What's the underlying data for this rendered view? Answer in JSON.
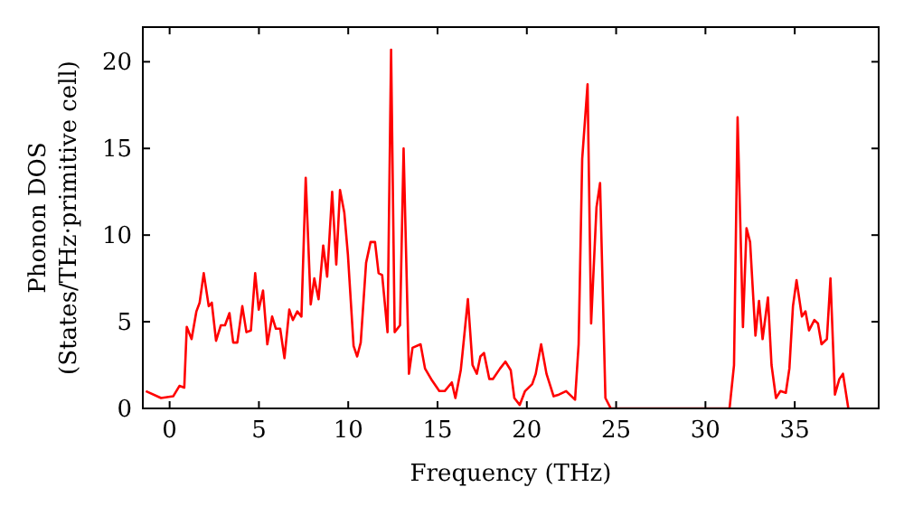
{
  "chart_data": {
    "type": "line",
    "xlabel": "Frequency (THz)",
    "ylabel": "Phonon DOS\n(States/THz·primitive cell)",
    "xlim": [
      -1.5,
      39.7
    ],
    "ylim": [
      0,
      22
    ],
    "xticks": [
      0,
      5,
      10,
      15,
      20,
      25,
      30,
      35
    ],
    "yticks": [
      0,
      5,
      10,
      15,
      20
    ],
    "grid": false,
    "marker": "none",
    "line_style": "solid",
    "series": [
      {
        "color": "#ff0000",
        "x": [
          -1.33,
          -0.48,
          0.2,
          0.55,
          0.82,
          0.96,
          1.23,
          1.5,
          1.68,
          1.91,
          2.19,
          2.36,
          2.6,
          2.87,
          3.1,
          3.35,
          3.56,
          3.79,
          4.07,
          4.3,
          4.55,
          4.79,
          4.99,
          5.23,
          5.47,
          5.74,
          5.95,
          6.19,
          6.43,
          6.7,
          6.9,
          7.15,
          7.38,
          7.62,
          7.9,
          8.1,
          8.34,
          8.6,
          8.82,
          9.1,
          9.33,
          9.54,
          9.78,
          9.98,
          10.3,
          10.5,
          10.7,
          11.0,
          11.25,
          11.5,
          11.7,
          11.9,
          12.2,
          12.4,
          12.6,
          12.9,
          13.1,
          13.4,
          13.6,
          14.05,
          14.3,
          14.7,
          15.1,
          15.4,
          15.8,
          16.0,
          16.3,
          16.4,
          16.7,
          16.96,
          17.2,
          17.4,
          17.6,
          17.9,
          18.1,
          18.5,
          18.8,
          19.1,
          19.3,
          19.6,
          19.9,
          20.3,
          20.5,
          20.8,
          21.1,
          21.5,
          21.8,
          22.2,
          22.7,
          22.9,
          23.1,
          23.4,
          23.6,
          23.9,
          24.1,
          24.4,
          24.7,
          31.35,
          31.6,
          31.8,
          32.1,
          32.3,
          32.5,
          32.8,
          33.0,
          33.2,
          33.5,
          33.7,
          33.95,
          34.2,
          34.5,
          34.7,
          34.9,
          35.1,
          35.4,
          35.6,
          35.8,
          36.1,
          36.3,
          36.5,
          36.8,
          37.0,
          37.25,
          37.5,
          37.7,
          38.0
        ],
        "values": [
          1.0,
          0.6,
          0.7,
          1.3,
          1.2,
          4.7,
          4.0,
          5.6,
          6.1,
          7.8,
          5.9,
          6.1,
          3.9,
          4.8,
          4.8,
          5.5,
          3.8,
          3.8,
          5.9,
          4.4,
          4.5,
          7.8,
          5.7,
          6.8,
          3.7,
          5.3,
          4.6,
          4.6,
          2.9,
          5.7,
          5.1,
          5.6,
          5.3,
          13.3,
          6.0,
          7.5,
          6.3,
          9.4,
          7.6,
          12.5,
          8.3,
          12.6,
          11.3,
          8.9,
          3.6,
          3.0,
          3.8,
          8.4,
          9.6,
          9.6,
          7.8,
          7.7,
          4.4,
          20.7,
          4.4,
          4.8,
          15.0,
          2.0,
          3.5,
          3.7,
          2.3,
          1.6,
          1.0,
          1.0,
          1.5,
          0.6,
          2.2,
          3.2,
          6.3,
          2.5,
          2.0,
          3.0,
          3.2,
          1.7,
          1.7,
          2.3,
          2.7,
          2.2,
          0.6,
          0.2,
          1.0,
          1.4,
          2.0,
          3.7,
          2.0,
          0.7,
          0.8,
          1.0,
          0.5,
          3.7,
          14.4,
          18.7,
          4.9,
          11.6,
          13.0,
          0.6,
          0,
          0,
          2.5,
          16.8,
          4.7,
          10.4,
          9.6,
          4.2,
          6.2,
          4.0,
          6.4,
          2.5,
          0.6,
          1.0,
          0.9,
          2.3,
          5.9,
          7.4,
          5.3,
          5.6,
          4.5,
          5.1,
          4.9,
          3.7,
          4.0,
          7.5,
          0.8,
          1.7,
          2.0,
          0
        ]
      }
    ]
  }
}
